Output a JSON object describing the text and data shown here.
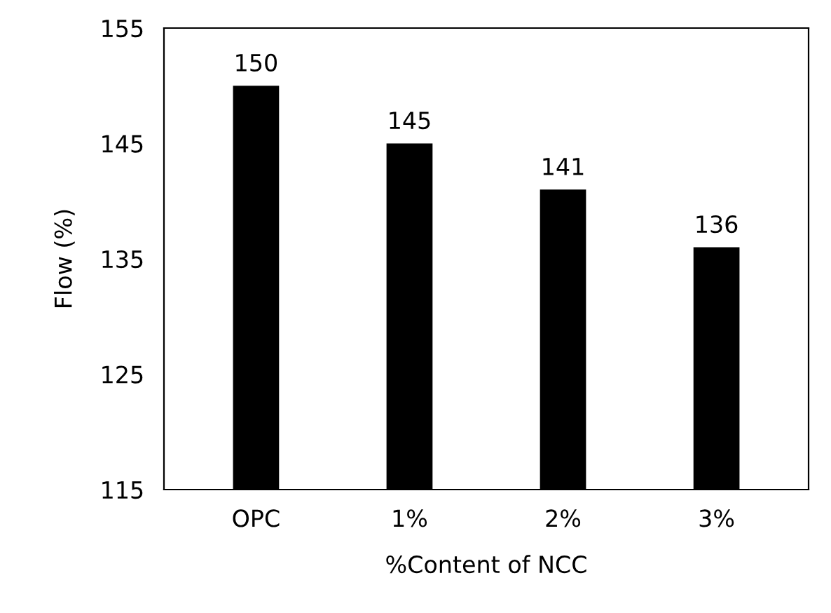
{
  "chart_data": {
    "type": "bar",
    "xlabel": "%Content of NCC",
    "ylabel": "Flow (%)",
    "categories": [
      "OPC",
      "1%",
      "2%",
      "3%"
    ],
    "values": [
      150,
      145,
      141,
      136
    ],
    "color": "#000000",
    "ylim": [
      115,
      155
    ],
    "yticks": [
      115,
      125,
      135,
      145,
      155
    ],
    "grid": false,
    "data_labels": true
  }
}
